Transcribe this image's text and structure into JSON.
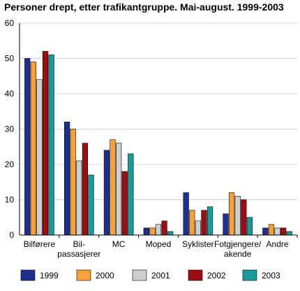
{
  "chart_data": {
    "type": "bar",
    "title": "Personer drept, etter trafikantgruppe. Mai-august. 1999-2003",
    "xlabel": "",
    "ylabel": "",
    "ylim": [
      0,
      60
    ],
    "yticks": [
      0,
      10,
      20,
      30,
      40,
      50,
      60
    ],
    "grid": true,
    "legend_position": "bottom",
    "categories": [
      [
        "Bilførere"
      ],
      [
        "Bil-",
        "passasjerer"
      ],
      [
        "MC"
      ],
      [
        "Moped"
      ],
      [
        "Syklister"
      ],
      [
        "Fotgjengere/",
        "akende"
      ],
      [
        "Andre"
      ]
    ],
    "series": [
      {
        "name": "1999",
        "color": "#1f2f8f",
        "values": [
          50,
          32,
          24,
          2,
          12,
          6,
          2
        ]
      },
      {
        "name": "2000",
        "color": "#f7a13a",
        "values": [
          49,
          30,
          27,
          2,
          7,
          12,
          3
        ]
      },
      {
        "name": "2001",
        "color": "#cfcfcf",
        "values": [
          44,
          21,
          26,
          3,
          4,
          11,
          2
        ]
      },
      {
        "name": "2002",
        "color": "#9b0f13",
        "values": [
          52,
          26,
          18,
          4,
          7,
          10,
          2
        ]
      },
      {
        "name": "2003",
        "color": "#1a9a9a",
        "values": [
          51,
          17,
          23,
          1,
          8,
          5,
          1
        ]
      }
    ]
  }
}
